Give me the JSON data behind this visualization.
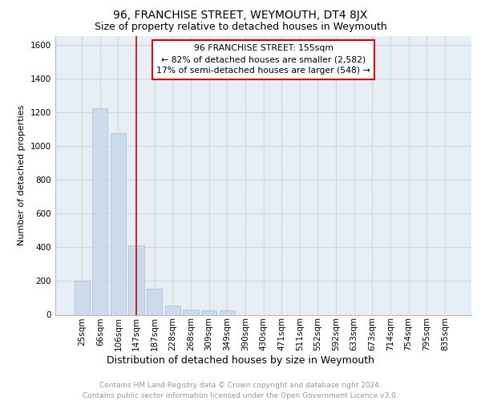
{
  "title": "96, FRANCHISE STREET, WEYMOUTH, DT4 8JX",
  "subtitle": "Size of property relative to detached houses in Weymouth",
  "xlabel": "Distribution of detached houses by size in Weymouth",
  "ylabel": "Number of detached properties",
  "categories": [
    "25sqm",
    "66sqm",
    "106sqm",
    "147sqm",
    "187sqm",
    "228sqm",
    "268sqm",
    "309sqm",
    "349sqm",
    "390sqm",
    "430sqm",
    "471sqm",
    "511sqm",
    "552sqm",
    "592sqm",
    "633sqm",
    "673sqm",
    "714sqm",
    "754sqm",
    "795sqm",
    "835sqm"
  ],
  "values": [
    200,
    1225,
    1075,
    410,
    155,
    55,
    30,
    25,
    25,
    0,
    0,
    0,
    0,
    0,
    0,
    0,
    0,
    0,
    0,
    0,
    0
  ],
  "bar_color": "#ccdaeb",
  "bar_edge_color": "#a8bfd4",
  "property_line_color": "#cc0000",
  "annotation_text": "96 FRANCHISE STREET: 155sqm\n← 82% of detached houses are smaller (2,582)\n17% of semi-detached houses are larger (548) →",
  "annotation_box_color": "#cc0000",
  "ylim": [
    0,
    1650
  ],
  "yticks": [
    0,
    200,
    400,
    600,
    800,
    1000,
    1200,
    1400,
    1600
  ],
  "grid_color": "#d0d8e4",
  "background_color": "#e8eef5",
  "footer_text": "Contains HM Land Registry data © Crown copyright and database right 2024.\nContains public sector information licensed under the Open Government Licence v3.0.",
  "title_fontsize": 10,
  "subtitle_fontsize": 9,
  "xlabel_fontsize": 9,
  "ylabel_fontsize": 8,
  "footer_fontsize": 6.5,
  "tick_fontsize": 7.5
}
